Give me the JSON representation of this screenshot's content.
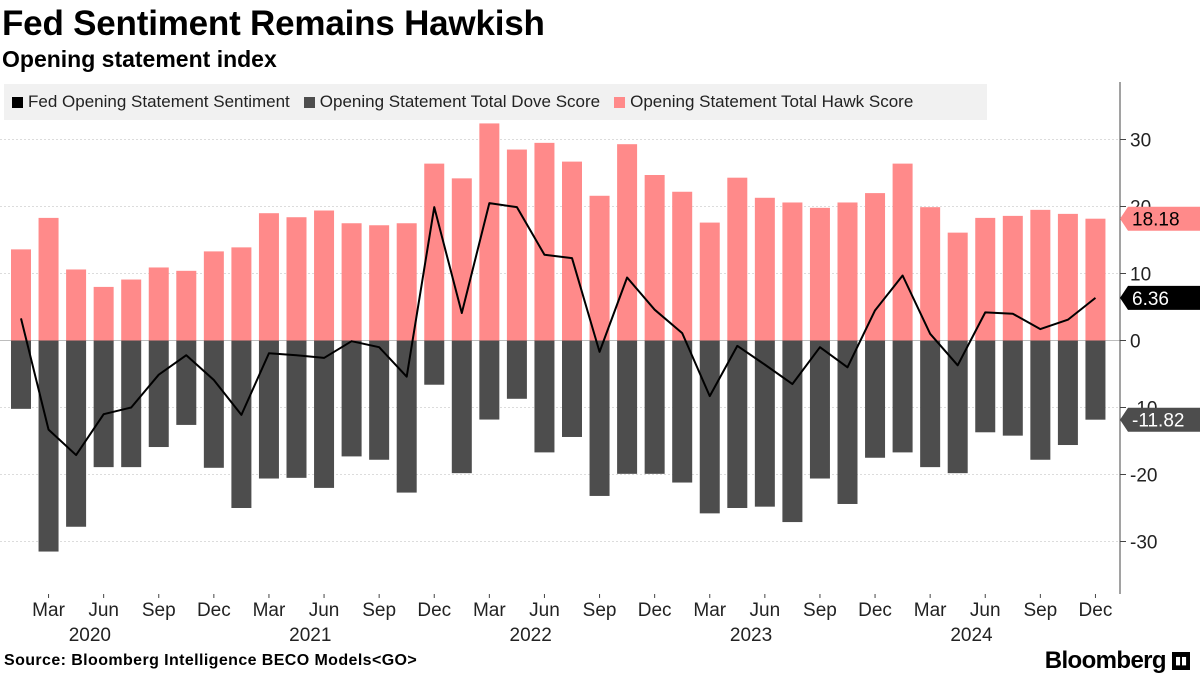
{
  "header": {
    "title": "Fed Sentiment Remains Hawkish",
    "subtitle": "Opening statement index"
  },
  "legend": [
    {
      "label": "Fed Opening Statement Sentiment",
      "color": "#000000"
    },
    {
      "label": "Opening Statement Total Dove Score",
      "color": "#4d4d4d"
    },
    {
      "label": "Opening Statement Total Hawk Score",
      "color": "#ff8a8a"
    }
  ],
  "footer": {
    "source": "Source: Bloomberg Intelligence BECO Models<GO>",
    "brand": "Bloomberg"
  },
  "chart_data": {
    "type": "bar",
    "title": "Fed Sentiment Remains Hawkish",
    "subtitle": "Opening statement index",
    "ylim": [
      -38,
      38
    ],
    "yticks": [
      -30,
      -20,
      -10,
      0,
      10,
      20,
      30
    ],
    "grid": true,
    "legend_position": "top-left",
    "x_month_labels": [
      "Mar",
      "Jun",
      "Sep",
      "Dec",
      "Mar",
      "Jun",
      "Sep",
      "Dec",
      "Mar",
      "Jun",
      "Sep",
      "Dec",
      "Mar",
      "Jun",
      "Sep",
      "Dec",
      "Mar",
      "Jun",
      "Sep",
      "Dec"
    ],
    "x_year_labels": [
      "2020",
      "2021",
      "2022",
      "2023",
      "2024"
    ],
    "series": [
      {
        "name": "Opening Statement Total Hawk Score",
        "color": "#ff8a8a",
        "values": [
          13.6,
          18.3,
          10.6,
          8.0,
          9.1,
          10.9,
          10.4,
          13.3,
          13.9,
          19.0,
          18.4,
          19.4,
          17.5,
          17.2,
          17.5,
          26.4,
          24.2,
          32.4,
          28.5,
          29.5,
          26.7,
          21.6,
          29.3,
          24.7,
          22.2,
          17.6,
          24.3,
          21.3,
          20.6,
          19.8,
          20.6,
          22.0,
          26.4,
          19.9,
          16.1,
          18.3,
          18.6,
          19.5,
          18.9,
          18.18
        ]
      },
      {
        "name": "Opening Statement Total Dove Score",
        "color": "#4d4d4d",
        "values": [
          -10.2,
          -31.5,
          -27.8,
          -18.9,
          -18.9,
          -15.9,
          -12.6,
          -19.0,
          -25.0,
          -20.6,
          -20.5,
          -22.0,
          -17.3,
          -17.8,
          -22.7,
          -6.6,
          -19.8,
          -11.8,
          -8.7,
          -16.7,
          -14.4,
          -23.2,
          -19.9,
          -19.9,
          -21.2,
          -25.8,
          -25.0,
          -24.8,
          -27.1,
          -20.6,
          -24.4,
          -17.5,
          -16.7,
          -18.9,
          -19.8,
          -13.7,
          -14.2,
          -17.8,
          -15.6,
          -11.82
        ]
      },
      {
        "name": "Fed Opening Statement Sentiment",
        "color": "#000000",
        "values": [
          3.3,
          -13.3,
          -17.1,
          -11.0,
          -10.0,
          -5.1,
          -2.2,
          -5.9,
          -11.1,
          -1.9,
          -2.2,
          -2.6,
          -0.1,
          -1.0,
          -5.4,
          19.9,
          4.1,
          20.5,
          19.9,
          12.8,
          12.3,
          -1.7,
          9.4,
          4.6,
          1.1,
          -8.3,
          -0.8,
          -3.6,
          -6.5,
          -1.0,
          -4.0,
          4.5,
          9.7,
          1.0,
          -3.7,
          4.2,
          4.0,
          1.7,
          3.1,
          6.36
        ]
      }
    ],
    "last_value_labels": [
      {
        "series": "Opening Statement Total Hawk Score",
        "value": "18.18",
        "bg": "#ff8a8a",
        "fg": "#000000"
      },
      {
        "series": "Fed Opening Statement Sentiment",
        "value": "6.36",
        "bg": "#000000",
        "fg": "#ffffff"
      },
      {
        "series": "Opening Statement Total Dove Score",
        "value": "-11.82",
        "bg": "#4d4d4d",
        "fg": "#ffffff"
      }
    ]
  }
}
